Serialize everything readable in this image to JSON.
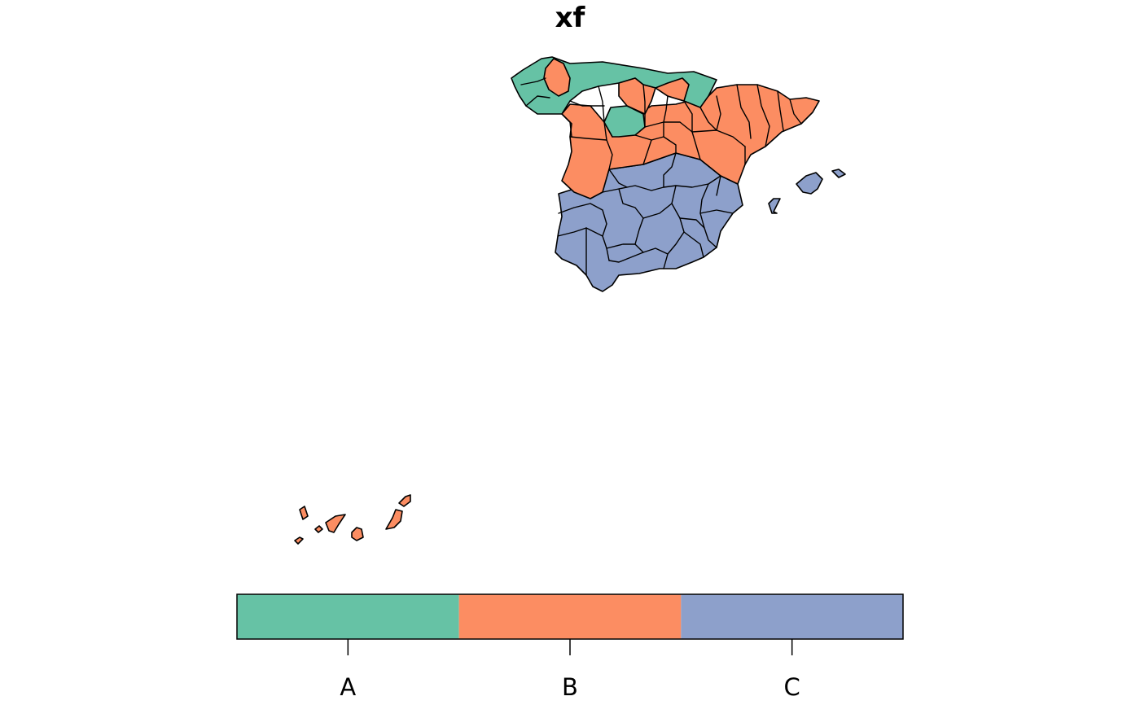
{
  "title": "xf",
  "colors": {
    "A": "#66c2a5",
    "B": "#fc8d62",
    "C": "#8da0cb"
  },
  "legend": {
    "categories": [
      "A",
      "B",
      "C"
    ]
  }
}
